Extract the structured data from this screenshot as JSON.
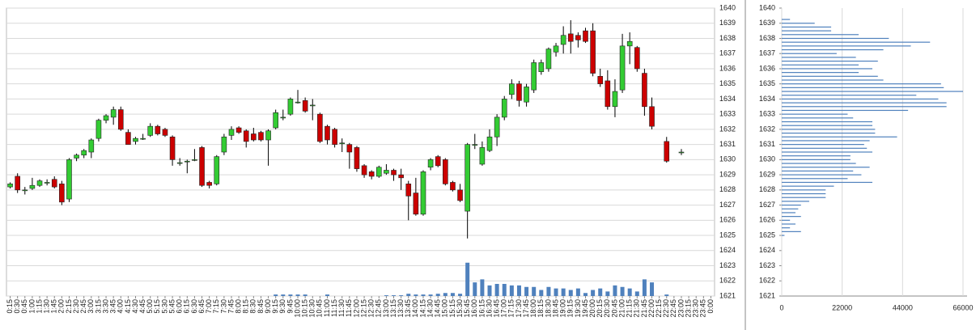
{
  "chart_data": [
    {
      "type": "candlestick",
      "categories": [
        "0:15",
        "0:30",
        "0:45",
        "1:00",
        "1:15",
        "1:30",
        "1:45",
        "2:00",
        "2:15",
        "2:30",
        "2:45",
        "3:00",
        "3:15",
        "3:30",
        "3:45",
        "4:00",
        "4:15",
        "4:30",
        "4:45",
        "5:00",
        "5:15",
        "5:30",
        "5:45",
        "6:00",
        "6:15",
        "6:30",
        "6:45",
        "7:00",
        "7:15",
        "7:30",
        "7:45",
        "8:00",
        "8:15",
        "8:30",
        "8:45",
        "9:00",
        "9:15",
        "9:30",
        "9:45",
        "10:00",
        "10:15",
        "10:30",
        "10:45",
        "11:00",
        "11:15",
        "11:30",
        "11:45",
        "12:00",
        "12:15",
        "12:30",
        "12:45",
        "13:00",
        "13:15",
        "13:30",
        "13:45",
        "14:00",
        "14:15",
        "14:30",
        "14:45",
        "15:00",
        "15:15",
        "15:30",
        "15:45",
        "16:00",
        "16:15",
        "16:30",
        "16:45",
        "17:00",
        "17:15",
        "17:30",
        "17:45",
        "18:00",
        "18:15",
        "18:30",
        "18:45",
        "19:00",
        "19:15",
        "19:30",
        "19:45",
        "20:00",
        "20:15",
        "20:30",
        "20:45",
        "21:00",
        "21:15",
        "21:30",
        "21:45",
        "22:00",
        "22:15",
        "22:30",
        "22:45",
        "23:00",
        "23:15",
        "23:30",
        "23:45",
        "0:00"
      ],
      "open": [
        1628.2,
        1628.9,
        1628.0,
        1628.1,
        1628.3,
        1628.5,
        1628.7,
        1628.4,
        1627.4,
        1630.1,
        1630.3,
        1630.5,
        1631.4,
        1632.6,
        1632.8,
        1633.3,
        1631.8,
        1631.2,
        1631.4,
        1631.6,
        1632.2,
        1632.0,
        1631.5,
        1629.8,
        1629.9,
        1630.0,
        1630.8,
        1628.5,
        1628.4,
        1630.5,
        1631.6,
        1632.1,
        1631.9,
        1631.7,
        1631.8,
        1631.3,
        1632.1,
        1632.8,
        1633.0,
        1633.8,
        1633.9,
        1633.6,
        1633.0,
        1632.2,
        1632.0,
        1631.1,
        1631.0,
        1630.8,
        1629.6,
        1629.2,
        1628.9,
        1629.1,
        1629.3,
        1629.0,
        1628.4,
        1627.8,
        1626.4,
        1629.5,
        1630.2,
        1630.0,
        1628.5,
        1628.0,
        1626.6,
        1631.0,
        1629.7,
        1630.6,
        1631.5,
        1632.8,
        1634.3,
        1635.0,
        1633.8,
        1634.6,
        1635.8,
        1636.0,
        1637.1,
        1637.6,
        1638.3,
        1638.2,
        1638.5,
        1638.5,
        1635.5,
        1635.2,
        1633.5,
        1634.6,
        1637.5,
        1637.4,
        1635.7,
        1633.5,
        null,
        1631.2,
        null,
        1630.5,
        null,
        null,
        null,
        null
      ],
      "high": [
        1628.5,
        1629.1,
        1628.2,
        1628.8,
        1628.7,
        1628.7,
        1628.9,
        1628.6,
        1630.1,
        1630.4,
        1630.7,
        1631.4,
        1632.7,
        1633.0,
        1633.5,
        1633.5,
        1632.0,
        1631.5,
        1631.7,
        1632.4,
        1632.3,
        1632.1,
        1631.6,
        1630.1,
        1630.0,
        1630.7,
        1630.9,
        1628.6,
        1630.3,
        1631.7,
        1632.2,
        1632.2,
        1632.0,
        1632.1,
        1631.9,
        1632.0,
        1633.3,
        1633.3,
        1634.1,
        1634.6,
        1634.1,
        1634.0,
        1633.1,
        1632.3,
        1632.1,
        1631.4,
        1631.1,
        1630.9,
        1629.7,
        1629.3,
        1629.6,
        1629.7,
        1629.4,
        1629.4,
        1628.6,
        1628.8,
        1629.3,
        1630.1,
        1630.3,
        1630.1,
        1628.6,
        1628.4,
        1631.1,
        1631.7,
        1631.2,
        1632.0,
        1633.0,
        1634.2,
        1635.3,
        1635.2,
        1635.0,
        1636.6,
        1636.6,
        1637.4,
        1637.7,
        1638.8,
        1639.2,
        1638.4,
        1638.7,
        1639.0,
        1636.0,
        1635.9,
        1635.3,
        1638.3,
        1638.4,
        1637.5,
        1636.0,
        1634.1,
        null,
        1631.5,
        null,
        1630.7,
        null,
        null,
        null,
        null
      ],
      "low": [
        1628.1,
        1627.8,
        1627.7,
        1628.0,
        1628.2,
        1628.3,
        1628.1,
        1627.0,
        1627.2,
        1629.9,
        1630.1,
        1630.1,
        1631.2,
        1632.4,
        1632.3,
        1631.9,
        1631.0,
        1631.0,
        1631.3,
        1631.5,
        1631.6,
        1631.5,
        1629.6,
        1629.6,
        1629.1,
        1629.9,
        1628.2,
        1628.1,
        1628.3,
        1630.3,
        1631.3,
        1631.7,
        1630.8,
        1631.2,
        1631.2,
        1629.6,
        1632.0,
        1632.6,
        1632.9,
        1633.7,
        1633.1,
        1632.6,
        1631.1,
        1631.0,
        1630.8,
        1630.5,
        1629.4,
        1629.2,
        1628.8,
        1628.7,
        1628.8,
        1629.0,
        1628.6,
        1628.0,
        1626.0,
        1626.3,
        1626.3,
        1629.3,
        1629.5,
        1628.3,
        1627.9,
        1627.2,
        1624.8,
        1630.7,
        1629.6,
        1630.5,
        1630.9,
        1632.6,
        1634.0,
        1633.5,
        1633.5,
        1634.4,
        1635.6,
        1635.8,
        1636.8,
        1637.0,
        1637.0,
        1637.4,
        1637.7,
        1635.5,
        1634.8,
        1633.3,
        1632.8,
        1634.4,
        1636.3,
        1635.8,
        1632.9,
        1632.0,
        null,
        1629.8,
        null,
        1630.3,
        null,
        null,
        null,
        null
      ],
      "close": [
        1628.4,
        1628.0,
        1628.0,
        1628.3,
        1628.6,
        1628.5,
        1628.2,
        1627.2,
        1630.0,
        1630.3,
        1630.6,
        1631.3,
        1632.6,
        1632.9,
        1633.3,
        1632.0,
        1631.0,
        1631.4,
        1631.4,
        1632.2,
        1631.7,
        1631.6,
        1630.0,
        1629.8,
        1629.9,
        1630.0,
        1628.3,
        1628.3,
        1630.2,
        1631.5,
        1632.0,
        1631.8,
        1631.2,
        1631.3,
        1631.3,
        1631.9,
        1633.1,
        1632.8,
        1634.0,
        1633.8,
        1633.2,
        1633.6,
        1631.2,
        1631.3,
        1631.0,
        1631.1,
        1630.5,
        1629.4,
        1629.0,
        1628.9,
        1629.5,
        1629.3,
        1629.0,
        1628.8,
        1627.6,
        1626.4,
        1629.2,
        1630.0,
        1629.6,
        1628.4,
        1628.0,
        1627.3,
        1631.0,
        1631.0,
        1630.8,
        1631.5,
        1632.8,
        1634.0,
        1635.0,
        1633.9,
        1634.8,
        1636.4,
        1636.4,
        1637.3,
        1637.5,
        1638.2,
        1637.8,
        1637.9,
        1637.8,
        1635.7,
        1635.0,
        1633.5,
        1634.5,
        1637.5,
        1637.8,
        1636.0,
        1633.5,
        1632.2,
        null,
        1629.9,
        null,
        1630.5,
        null,
        null,
        null,
        null
      ],
      "volume": [
        null,
        null,
        null,
        null,
        null,
        null,
        null,
        null,
        null,
        null,
        null,
        null,
        null,
        null,
        null,
        null,
        null,
        null,
        null,
        null,
        null,
        null,
        null,
        null,
        null,
        null,
        null,
        null,
        null,
        null,
        null,
        null,
        null,
        null,
        null,
        null,
        0.1,
        0.1,
        0.1,
        0.1,
        0.1,
        null,
        null,
        0.1,
        null,
        null,
        null,
        null,
        null,
        null,
        null,
        0.05,
        0.05,
        0.05,
        0.15,
        0.1,
        0.1,
        0.1,
        0.15,
        0.2,
        0.2,
        0.15,
        2.2,
        0.9,
        1.1,
        0.7,
        0.8,
        0.8,
        0.7,
        0.7,
        0.6,
        0.6,
        0.4,
        0.6,
        0.5,
        0.5,
        0.4,
        0.5,
        0.2,
        0.4,
        0.5,
        0.3,
        0.7,
        0.6,
        0.5,
        0.3,
        1.1,
        0.9,
        null,
        0.1,
        null,
        null,
        null,
        null,
        null,
        null
      ],
      "up_color": "#33cc33",
      "down_color": "#cc0000",
      "volume_color": "#4f81bd",
      "ylim": [
        1621,
        1640
      ],
      "yticks": [
        1621,
        1622,
        1623,
        1624,
        1625,
        1626,
        1627,
        1628,
        1629,
        1630,
        1631,
        1632,
        1633,
        1634,
        1635,
        1636,
        1637,
        1638,
        1639,
        1640
      ],
      "grid": true
    },
    {
      "type": "barh",
      "y": [
        1639.25,
        1639.0,
        1638.75,
        1638.5,
        1638.25,
        1638.0,
        1637.75,
        1637.5,
        1637.25,
        1637.0,
        1636.75,
        1636.5,
        1636.25,
        1636.0,
        1635.75,
        1635.5,
        1635.25,
        1635.0,
        1634.75,
        1634.5,
        1634.25,
        1634.0,
        1633.75,
        1633.5,
        1633.25,
        1633.0,
        1632.75,
        1632.5,
        1632.25,
        1632.0,
        1631.75,
        1631.5,
        1631.25,
        1631.0,
        1630.75,
        1630.5,
        1630.25,
        1630.0,
        1629.75,
        1629.5,
        1629.25,
        1629.0,
        1628.75,
        1628.5,
        1628.25,
        1628.0,
        1627.75,
        1627.5,
        1627.25,
        1627.0,
        1626.75,
        1626.5,
        1626.25,
        1626.0,
        1625.75,
        1625.5,
        1625.25,
        1625.0
      ],
      "values": [
        3000,
        12000,
        18000,
        18000,
        28000,
        39000,
        54000,
        47000,
        37000,
        20000,
        27000,
        35000,
        28000,
        33000,
        28000,
        35000,
        37000,
        58000,
        59000,
        66000,
        49000,
        57000,
        60000,
        60000,
        46000,
        24000,
        26000,
        33000,
        33000,
        34000,
        34000,
        42000,
        32000,
        30000,
        31000,
        33000,
        25000,
        25000,
        27000,
        32000,
        26000,
        29000,
        24000,
        33000,
        19000,
        16000,
        16000,
        16000,
        10000,
        7000,
        6000,
        5000,
        7000,
        3000,
        5000,
        3000,
        7000,
        1000
      ],
      "color": "#4f81bd",
      "xlim": [
        0,
        66000
      ],
      "xticks": [
        0,
        22000,
        44000,
        66000
      ],
      "ylim": [
        1621,
        1640
      ],
      "yticks": [
        1621,
        1622,
        1623,
        1624,
        1625,
        1626,
        1627,
        1628,
        1629,
        1630,
        1631,
        1632,
        1633,
        1634,
        1635,
        1636,
        1637,
        1638,
        1639,
        1640
      ],
      "grid": true
    }
  ]
}
